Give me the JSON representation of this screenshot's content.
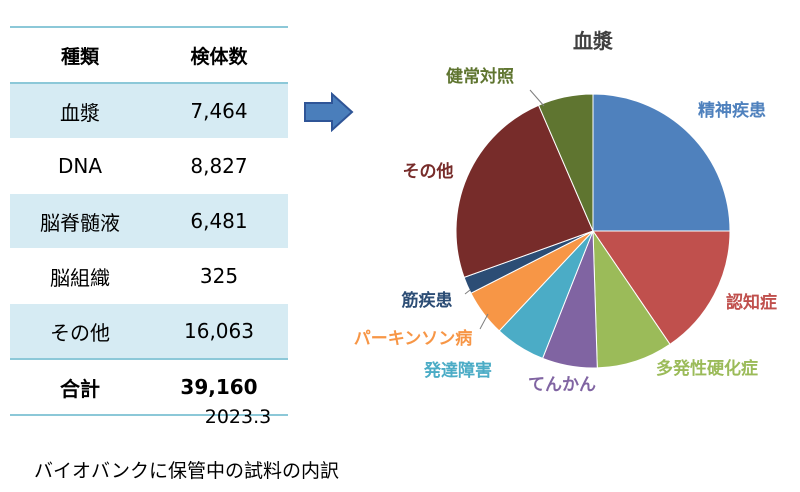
{
  "table": {
    "headers": [
      "種類",
      "検体数"
    ],
    "rows": [
      {
        "type": "血漿",
        "count": "7,464"
      },
      {
        "type": "DNA",
        "count": "8,827"
      },
      {
        "type": "脳脊髄液",
        "count": "6,481"
      },
      {
        "type": "脳組織",
        "count": "325"
      },
      {
        "type": "その他",
        "count": "16,063"
      }
    ],
    "total_label": "合計",
    "total_value": "39,160"
  },
  "date_note": "2023.3",
  "caption": "バイオバンクに保管中の試料の内訳",
  "colors": {
    "header_rule": "#8cc8d8",
    "row_band": "#d6ebf3",
    "arrow_fill": "#4a7ebb",
    "arrow_stroke": "#2f5597"
  },
  "chart_data": {
    "type": "pie",
    "title": "血漿",
    "legend": "none",
    "slices": [
      {
        "label": "精神疾患",
        "value": 25.0,
        "color": "#4f81bd"
      },
      {
        "label": "認知症",
        "value": 15.5,
        "color": "#c0504d"
      },
      {
        "label": "多発性硬化症",
        "value": 9.0,
        "color": "#9bbb59"
      },
      {
        "label": "てんかん",
        "value": 6.5,
        "color": "#8064a2"
      },
      {
        "label": "発達障害",
        "value": 6.0,
        "color": "#4bacc6"
      },
      {
        "label": "パーキンソン病",
        "value": 5.5,
        "color": "#f79646"
      },
      {
        "label": "筋疾患",
        "value": 2.0,
        "color": "#2c4d75"
      },
      {
        "label": "その他",
        "value": 24.0,
        "color": "#772c2a"
      },
      {
        "label": "健常対照",
        "value": 6.5,
        "color": "#5f7530"
      }
    ]
  }
}
